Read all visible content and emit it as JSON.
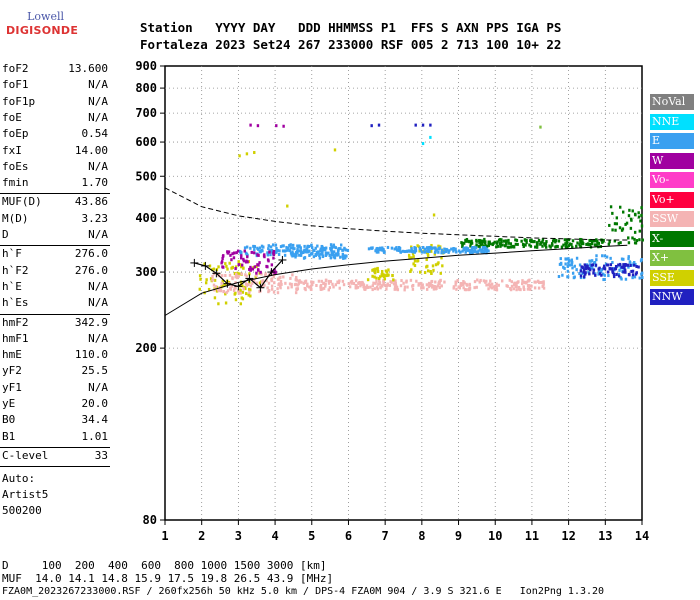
{
  "logo": {
    "top": "Lowell",
    "bottom": "DIGISONDE"
  },
  "header": {
    "line1": "Station   YYYY DAY   DDD HHMMSS P1  FFS S AXN PPS IGA PS",
    "line2": "Fortaleza 2023 Set24 267 233000 RSF 005 2 713 100 10+ 22"
  },
  "params_group1": [
    {
      "k": "foF2",
      "v": "13.600"
    },
    {
      "k": "foF1",
      "v": "N/A"
    },
    {
      "k": "foF1p",
      "v": "N/A"
    },
    {
      "k": "foE",
      "v": "N/A"
    },
    {
      "k": "foEp",
      "v": "0.54"
    },
    {
      "k": "fxI",
      "v": "14.00"
    },
    {
      "k": "foEs",
      "v": "N/A"
    },
    {
      "k": "fmin",
      "v": "1.70"
    }
  ],
  "params_group2": [
    {
      "k": "MUF(D)",
      "v": "43.86"
    },
    {
      "k": "M(D)",
      "v": "3.23"
    },
    {
      "k": "D",
      "v": "N/A"
    }
  ],
  "params_group3": [
    {
      "k": "h`F",
      "v": "276.0"
    },
    {
      "k": "h`F2",
      "v": "276.0"
    },
    {
      "k": "h`E",
      "v": "N/A"
    },
    {
      "k": "h`Es",
      "v": "N/A"
    }
  ],
  "params_group4": [
    {
      "k": "hmF2",
      "v": "342.9"
    },
    {
      "k": "hmF1",
      "v": "N/A"
    },
    {
      "k": "hmE",
      "v": "110.0"
    },
    {
      "k": "yF2",
      "v": "25.5"
    },
    {
      "k": "yF1",
      "v": "N/A"
    },
    {
      "k": "yE",
      "v": "20.0"
    },
    {
      "k": "B0",
      "v": "34.4"
    },
    {
      "k": "B1",
      "v": "1.01"
    }
  ],
  "c_level": {
    "k": "C-level",
    "v": "33"
  },
  "auto_lines": [
    "Auto:",
    "Artist5",
    "500200"
  ],
  "footer": {
    "d_line": "D     100  200  400  600  800 1000 1500 3000 [km]",
    "muf_line": "MUF  14.0 14.1 14.8 15.9 17.5 19.8 26.5 43.9 [MHz]",
    "file_line": "FZA0M_2023267233000.RSF / 260fx256h 50 kHz 5.0 km / DPS-4 FZA0M 904 / 3.9 S 321.6 E   Ion2Png 1.3.20"
  },
  "legend": [
    {
      "label": "NoVal",
      "color": "#808080"
    },
    {
      "label": "NNE",
      "color": "#00e0ff"
    },
    {
      "label": "E",
      "color": "#3aa0f0"
    },
    {
      "label": "W",
      "color": "#a000a0"
    },
    {
      "label": "Vo-",
      "color": "#ff3cc8"
    },
    {
      "label": "Vo+",
      "color": "#ff0040"
    },
    {
      "label": "SSW",
      "color": "#f4b4b4"
    },
    {
      "label": "X-",
      "color": "#007800"
    },
    {
      "label": "X+",
      "color": "#80c040"
    },
    {
      "label": "SSE",
      "color": "#d0d000"
    },
    {
      "label": "NNW",
      "color": "#2020c0"
    }
  ],
  "chart_data": {
    "type": "scatter",
    "title": "",
    "xlabel": "",
    "ylabel": "",
    "xlim": [
      1,
      14
    ],
    "ylim": [
      80,
      900
    ],
    "y_log_scale": true,
    "x_ticks": [
      1,
      2,
      3,
      4,
      5,
      6,
      7,
      8,
      9,
      10,
      11,
      12,
      13,
      14
    ],
    "y_ticks": [
      80,
      200,
      300,
      400,
      500,
      600,
      700,
      800,
      900
    ],
    "grid": true,
    "legend_placement": "right",
    "profile_curve": {
      "x": [
        1.0,
        2.0,
        3.0,
        4.0,
        5.0,
        6.0,
        7.0,
        8.0,
        9.0,
        10.0,
        11.0,
        12.0,
        13.0,
        13.6
      ],
      "y": [
        238,
        268,
        284,
        296,
        305,
        312,
        318,
        323,
        328,
        332,
        336,
        340,
        344,
        346
      ]
    },
    "mirror_curve": {
      "x": [
        1.0,
        2.0,
        3.0,
        4.0,
        5.0,
        6.0,
        7.0,
        8.0,
        9.0,
        10.0,
        11.0,
        12.0,
        13.0,
        13.6
      ],
      "y": [
        470,
        425,
        405,
        393,
        384,
        378,
        373,
        369,
        366,
        363,
        360,
        358,
        356,
        356
      ]
    },
    "trace_curve": {
      "x": [
        1.8,
        2.1,
        2.4,
        2.7,
        3.0,
        3.3,
        3.6,
        3.9,
        4.2
      ],
      "y": [
        315,
        310,
        298,
        282,
        278,
        290,
        276,
        300,
        320
      ]
    },
    "echo_bands": [
      {
        "x": [
          1.9,
          3.6
        ],
        "y": [
          255,
          320
        ],
        "color": "#d0d000"
      },
      {
        "x": [
          2.2,
          4.6
        ],
        "y": [
          270,
          300
        ],
        "color": "#f4b4b4"
      },
      {
        "x": [
          3.0,
          5.8
        ],
        "y": [
          330,
          350
        ],
        "color": "#3aa0f0"
      },
      {
        "x": [
          4.4,
          6.0
        ],
        "y": [
          325,
          345
        ],
        "color": "#3aa0f0"
      },
      {
        "x": [
          4.5,
          8.6
        ],
        "y": [
          275,
          290
        ],
        "color": "#f4b4b4"
      },
      {
        "x": [
          7.6,
          8.6
        ],
        "y": [
          300,
          350
        ],
        "color": "#d0d000"
      },
      {
        "x": [
          8.8,
          11.3
        ],
        "y": [
          275,
          290
        ],
        "color": "#f4b4b4"
      },
      {
        "x": [
          6.5,
          7.2
        ],
        "y": [
          290,
          310
        ],
        "color": "#d0d000"
      },
      {
        "x": [
          9.0,
          13.0
        ],
        "y": [
          345,
          360
        ],
        "color": "#007800"
      },
      {
        "x": [
          11.7,
          14.0
        ],
        "y": [
          290,
          330
        ],
        "color": "#3aa0f0"
      },
      {
        "x": [
          12.3,
          13.9
        ],
        "y": [
          295,
          315
        ],
        "color": "#2020c0"
      },
      {
        "x": [
          13.0,
          14.0
        ],
        "y": [
          350,
          430
        ],
        "color": "#007800"
      },
      {
        "x": [
          6.5,
          9.8
        ],
        "y": [
          335,
          345
        ],
        "color": "#3aa0f0"
      },
      {
        "x": [
          2.5,
          4.0
        ],
        "y": [
          300,
          340
        ],
        "color": "#a000a0"
      }
    ],
    "isolated_echoes": [
      {
        "x": 3.0,
        "y": 562,
        "color": "#d0d000"
      },
      {
        "x": 3.2,
        "y": 568,
        "color": "#d0d000"
      },
      {
        "x": 3.4,
        "y": 572,
        "color": "#d0d000"
      },
      {
        "x": 3.3,
        "y": 662,
        "color": "#a000a0"
      },
      {
        "x": 3.5,
        "y": 660,
        "color": "#a000a0"
      },
      {
        "x": 4.0,
        "y": 660,
        "color": "#a000a0"
      },
      {
        "x": 4.2,
        "y": 658,
        "color": "#a000a0"
      },
      {
        "x": 6.6,
        "y": 660,
        "color": "#2020c0"
      },
      {
        "x": 6.8,
        "y": 662,
        "color": "#2020c0"
      },
      {
        "x": 7.8,
        "y": 662,
        "color": "#2020c0"
      },
      {
        "x": 8.0,
        "y": 662,
        "color": "#2020c0"
      },
      {
        "x": 8.2,
        "y": 662,
        "color": "#2020c0"
      },
      {
        "x": 8.0,
        "y": 600,
        "color": "#00e0ff"
      },
      {
        "x": 8.2,
        "y": 620,
        "color": "#00e0ff"
      },
      {
        "x": 5.6,
        "y": 580,
        "color": "#d0d000"
      },
      {
        "x": 8.3,
        "y": 410,
        "color": "#d0d000"
      },
      {
        "x": 4.3,
        "y": 430,
        "color": "#d0d000"
      },
      {
        "x": 11.2,
        "y": 655,
        "color": "#80c040"
      }
    ]
  }
}
